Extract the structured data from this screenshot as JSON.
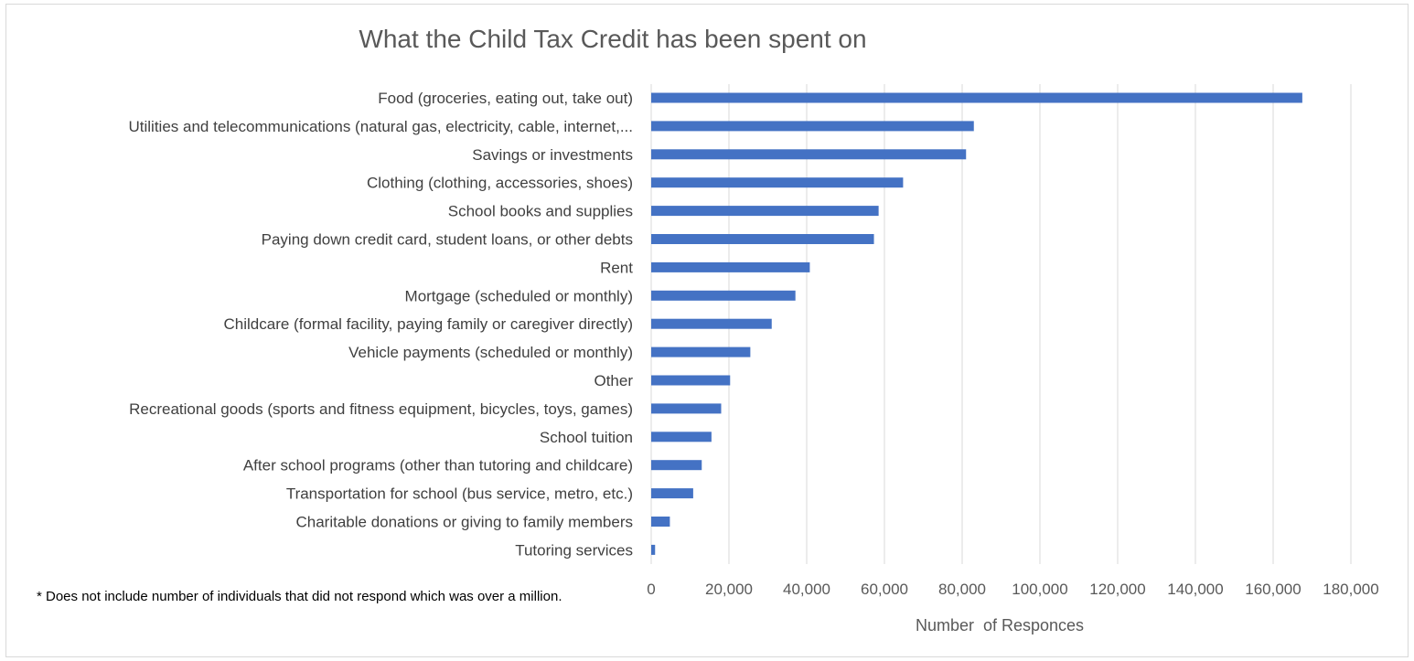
{
  "chart_data": {
    "type": "bar",
    "orientation": "horizontal",
    "title": "What the Child Tax Credit has been spent on",
    "xlabel": "Number  of Responces",
    "ylabel": "",
    "xlim": [
      0,
      180000
    ],
    "xticks": [
      0,
      20000,
      40000,
      60000,
      80000,
      100000,
      120000,
      140000,
      160000,
      180000
    ],
    "xtick_labels": [
      "0",
      "20,000",
      "40,000",
      "60,000",
      "80,000",
      "100,000",
      "120,000",
      "140,000",
      "160,000",
      "180,000"
    ],
    "grid": "vertical",
    "legend": "none",
    "bar_color": "#4472c4",
    "categories": [
      "Food (groceries, eating out, take out)",
      "Utilities and telecommunications (natural gas, electricity, cable, internet,...",
      "Savings or investments",
      "Clothing (clothing, accessories, shoes)",
      "School books and supplies",
      "Paying down credit card, student loans, or other debts",
      "Rent",
      "Mortgage (scheduled or monthly)",
      "Childcare (formal facility, paying family or caregiver directly)",
      "Vehicle payments (scheduled or monthly)",
      "Other",
      "Recreational goods (sports and fitness equipment, bicycles, toys, games)",
      "School tuition",
      "After school programs (other than tutoring and childcare)",
      "Transportation for school (bus service, metro, etc.)",
      "Charitable donations or giving to family members",
      "Tutoring services"
    ],
    "values": [
      167500,
      83000,
      81000,
      64800,
      58500,
      57300,
      40800,
      37100,
      31000,
      25500,
      20300,
      18000,
      15500,
      13000,
      10800,
      4800,
      1000
    ]
  },
  "footnote": "* Does not include number of individuals that did not respond which was over a million."
}
